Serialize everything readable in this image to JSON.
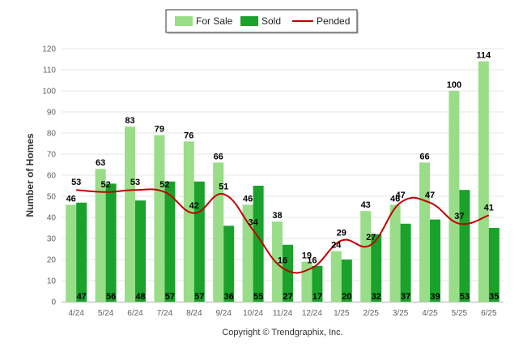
{
  "chart_data": {
    "type": "bar",
    "categories": [
      "4/24",
      "5/24",
      "6/24",
      "7/24",
      "8/24",
      "9/24",
      "10/24",
      "11/24",
      "12/24",
      "1/25",
      "2/25",
      "3/25",
      "4/25",
      "5/25",
      "6/25"
    ],
    "series": [
      {
        "name": "For Sale",
        "type": "bar",
        "color": "#99dd88",
        "values": [
          46,
          63,
          83,
          79,
          76,
          66,
          46,
          38,
          19,
          24,
          43,
          46,
          66,
          100,
          114
        ]
      },
      {
        "name": "Sold",
        "type": "bar",
        "color": "#1aa22b",
        "values": [
          47,
          56,
          48,
          57,
          57,
          36,
          55,
          27,
          17,
          20,
          32,
          37,
          39,
          53,
          35
        ]
      },
      {
        "name": "Pended",
        "type": "line",
        "color": "#c00000",
        "values": [
          53,
          52,
          53,
          52,
          42,
          51,
          34,
          16,
          16,
          29,
          27,
          47,
          47,
          37,
          41
        ]
      }
    ],
    "xlabel": "",
    "ylabel": "Number of Homes",
    "ylim": [
      0,
      120
    ],
    "yticks": [
      0,
      10,
      20,
      30,
      40,
      50,
      60,
      70,
      80,
      90,
      100,
      110,
      120
    ],
    "grid": true,
    "legend_position": "top-center",
    "credit": "Copyright © Trendgraphix, Inc."
  }
}
